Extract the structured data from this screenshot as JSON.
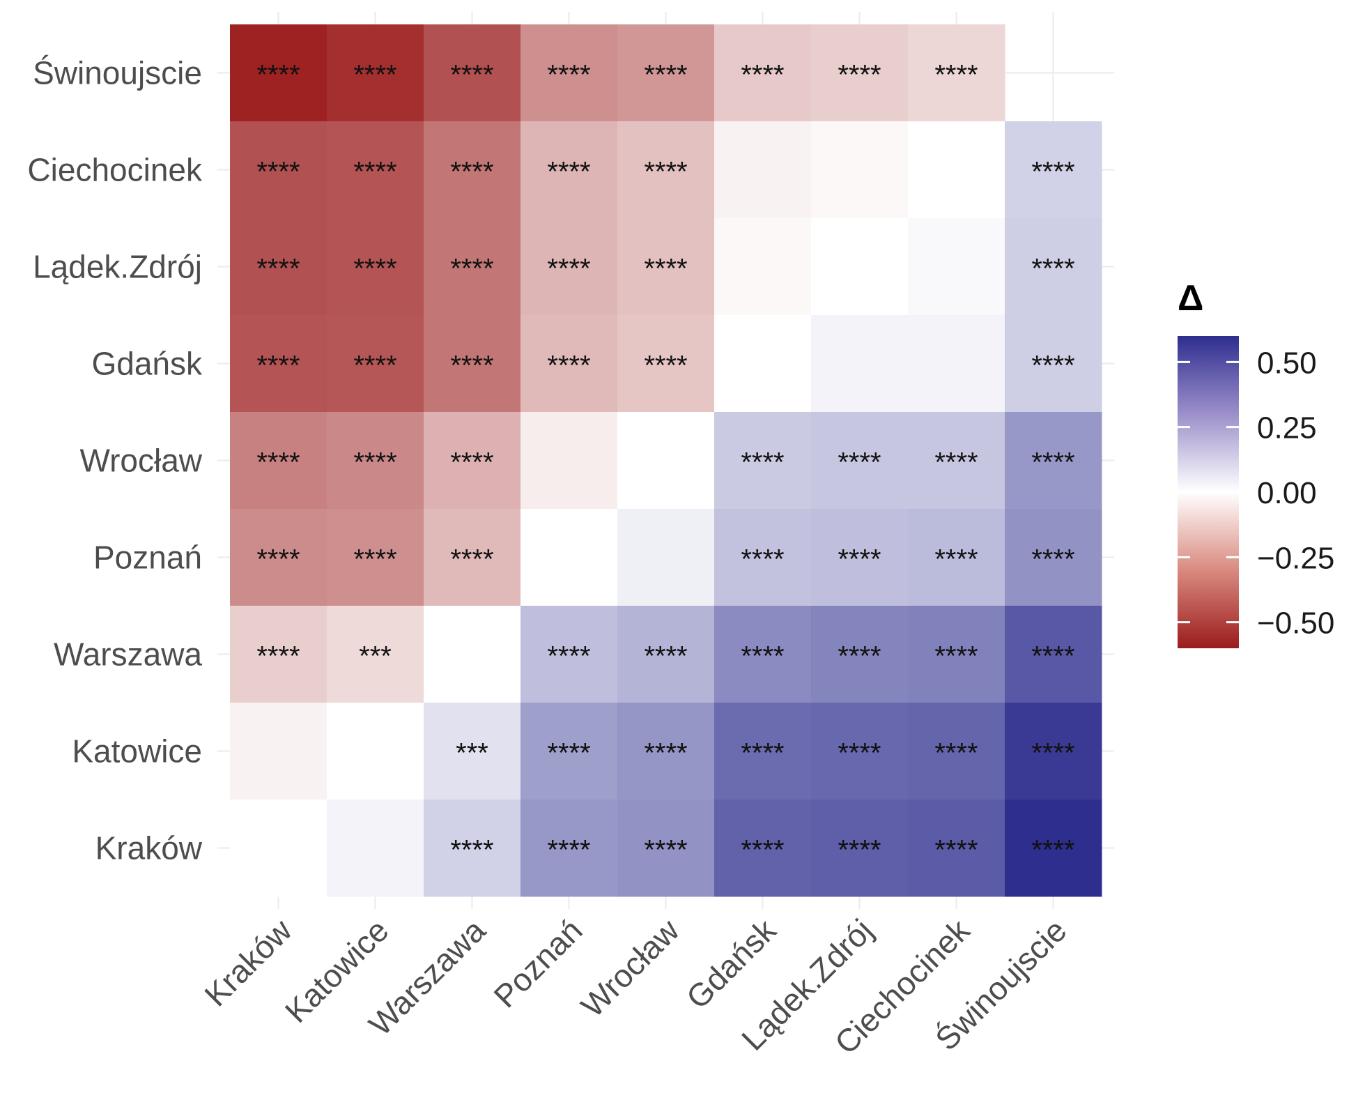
{
  "chart_data": {
    "type": "heatmap",
    "title": "",
    "xlabel": "",
    "ylabel": "",
    "x_categories": [
      "Kraków",
      "Katowice",
      "Warszawa",
      "Poznań",
      "Wrocław",
      "Gdańsk",
      "Lądek.Zdrój",
      "Ciechocinek",
      "Świnoujscie"
    ],
    "y_categories": [
      "Świnoujscie",
      "Ciechocinek",
      "Lądek.Zdrój",
      "Gdańsk",
      "Wrocław",
      "Poznań",
      "Warszawa",
      "Katowice",
      "Kraków"
    ],
    "values": [
      [
        -0.58,
        -0.54,
        -0.44,
        -0.26,
        -0.24,
        -0.11,
        -0.1,
        -0.08,
        0.0
      ],
      [
        -0.44,
        -0.43,
        -0.33,
        -0.16,
        -0.13,
        -0.02,
        -0.01,
        0.0,
        0.1
      ],
      [
        -0.44,
        -0.43,
        -0.33,
        -0.16,
        -0.13,
        -0.01,
        0.0,
        0.01,
        0.11
      ],
      [
        -0.43,
        -0.42,
        -0.33,
        -0.15,
        -0.12,
        0.0,
        0.02,
        0.02,
        0.11
      ],
      [
        -0.3,
        -0.28,
        -0.17,
        -0.03,
        0.0,
        0.12,
        0.13,
        0.13,
        0.26
      ],
      [
        -0.27,
        -0.26,
        -0.15,
        0.0,
        0.03,
        0.14,
        0.15,
        0.16,
        0.28
      ],
      [
        -0.1,
        -0.07,
        0.0,
        0.15,
        0.18,
        0.3,
        0.32,
        0.33,
        0.46
      ],
      [
        -0.02,
        0.0,
        0.06,
        0.24,
        0.27,
        0.4,
        0.41,
        0.42,
        0.56
      ],
      [
        0.0,
        0.02,
        0.1,
        0.26,
        0.28,
        0.43,
        0.44,
        0.45,
        0.6
      ]
    ],
    "significance": [
      [
        "****",
        "****",
        "****",
        "****",
        "****",
        "****",
        "****",
        "****",
        ""
      ],
      [
        "****",
        "****",
        "****",
        "****",
        "****",
        "",
        "",
        "",
        "****"
      ],
      [
        "****",
        "****",
        "****",
        "****",
        "****",
        "",
        "",
        "",
        "****"
      ],
      [
        "****",
        "****",
        "****",
        "****",
        "****",
        "",
        "",
        "",
        "****"
      ],
      [
        "****",
        "****",
        "****",
        "",
        "",
        "****",
        "****",
        "****",
        "****"
      ],
      [
        "****",
        "****",
        "****",
        "",
        "",
        "****",
        "****",
        "****",
        "****"
      ],
      [
        "****",
        "***",
        "",
        "****",
        "****",
        "****",
        "****",
        "****",
        "****"
      ],
      [
        "",
        "",
        "***",
        "****",
        "****",
        "****",
        "****",
        "****",
        "****"
      ],
      [
        "",
        "",
        "****",
        "****",
        "****",
        "****",
        "****",
        "****",
        "****"
      ]
    ],
    "legend": {
      "title": "Δ",
      "placement": "right",
      "ticks": [
        0.5,
        0.25,
        0.0,
        -0.25,
        -0.5
      ],
      "tick_labels": [
        "0.50",
        "0.25",
        "0.00",
        "−0.25",
        "−0.50"
      ],
      "range": [
        -0.6,
        0.6
      ]
    },
    "colors": {
      "low": "#9b1c1c",
      "mid": "#ffffff",
      "high": "#2e2e8f"
    },
    "grid": true,
    "upper_triangle_blank_cell": [
      0,
      8
    ]
  }
}
